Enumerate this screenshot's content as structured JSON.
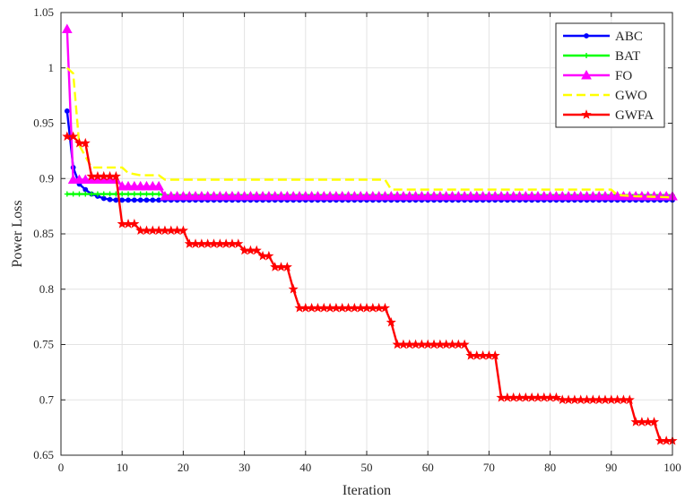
{
  "chart_data": {
    "type": "line",
    "title": "",
    "xlabel": "Iteration",
    "ylabel": "Power Loss",
    "xlim": [
      0,
      100
    ],
    "ylim": [
      0.65,
      1.05
    ],
    "xticks": [
      0,
      10,
      20,
      30,
      40,
      50,
      60,
      70,
      80,
      90,
      100
    ],
    "yticks": [
      0.65,
      0.7,
      0.75,
      0.8,
      0.85,
      0.9,
      0.95,
      1,
      1.05
    ],
    "ytick_labels": [
      "0.65",
      "0.7",
      "0.75",
      "0.8",
      "0.85",
      "0.9",
      "0.95",
      "1",
      "1.05"
    ],
    "grid": true,
    "legend_position": "top-right",
    "series": [
      {
        "name": "ABC",
        "color": "#0000ff",
        "marker": "dot",
        "dash": "solid",
        "points": [
          [
            1,
            0.961
          ],
          [
            2,
            0.91
          ],
          [
            3,
            0.895
          ],
          [
            4,
            0.89
          ],
          [
            5,
            0.886
          ],
          [
            6,
            0.884
          ],
          [
            7,
            0.882
          ],
          [
            8,
            0.881
          ],
          [
            9,
            0.8805
          ],
          [
            10,
            0.8805
          ],
          [
            100,
            0.8805
          ]
        ]
      },
      {
        "name": "BAT",
        "color": "#00ff00",
        "marker": "plus",
        "dash": "solid",
        "points": [
          [
            1,
            0.886
          ],
          [
            16,
            0.886
          ],
          [
            17,
            0.885
          ],
          [
            100,
            0.885
          ]
        ]
      },
      {
        "name": "FO",
        "color": "#ff00ff",
        "marker": "triangle",
        "dash": "solid",
        "points": [
          [
            1,
            1.035
          ],
          [
            2,
            0.899
          ],
          [
            9,
            0.899
          ],
          [
            10,
            0.893
          ],
          [
            16,
            0.893
          ],
          [
            17,
            0.884
          ],
          [
            100,
            0.884
          ]
        ]
      },
      {
        "name": "GWO",
        "color": "#ffff00",
        "marker": "none",
        "dash": "dashed",
        "points": [
          [
            1,
            1.0
          ],
          [
            2,
            0.995
          ],
          [
            3,
            0.93
          ],
          [
            4,
            0.92
          ],
          [
            5,
            0.91
          ],
          [
            10,
            0.91
          ],
          [
            11,
            0.905
          ],
          [
            13,
            0.903
          ],
          [
            16,
            0.903
          ],
          [
            17,
            0.899
          ],
          [
            53,
            0.899
          ],
          [
            54,
            0.89
          ],
          [
            90,
            0.89
          ],
          [
            91,
            0.885
          ],
          [
            94,
            0.884
          ],
          [
            100,
            0.883
          ]
        ]
      },
      {
        "name": "GWFA",
        "color": "#ff0000",
        "marker": "star",
        "dash": "solid",
        "points": [
          [
            1,
            0.938
          ],
          [
            2,
            0.938
          ],
          [
            3,
            0.932
          ],
          [
            4,
            0.932
          ],
          [
            5,
            0.902
          ],
          [
            9,
            0.902
          ],
          [
            10,
            0.859
          ],
          [
            12,
            0.859
          ],
          [
            13,
            0.853
          ],
          [
            20,
            0.853
          ],
          [
            21,
            0.841
          ],
          [
            29,
            0.841
          ],
          [
            30,
            0.835
          ],
          [
            32,
            0.835
          ],
          [
            33,
            0.83
          ],
          [
            34,
            0.83
          ],
          [
            35,
            0.82
          ],
          [
            37,
            0.82
          ],
          [
            38,
            0.8
          ],
          [
            39,
            0.783
          ],
          [
            53,
            0.783
          ],
          [
            54,
            0.77
          ],
          [
            55,
            0.75
          ],
          [
            66,
            0.75
          ],
          [
            67,
            0.74
          ],
          [
            71,
            0.74
          ],
          [
            72,
            0.702
          ],
          [
            81,
            0.702
          ],
          [
            82,
            0.7
          ],
          [
            93,
            0.7
          ],
          [
            94,
            0.68
          ],
          [
            97,
            0.68
          ],
          [
            98,
            0.663
          ],
          [
            100,
            0.663
          ]
        ]
      }
    ]
  }
}
